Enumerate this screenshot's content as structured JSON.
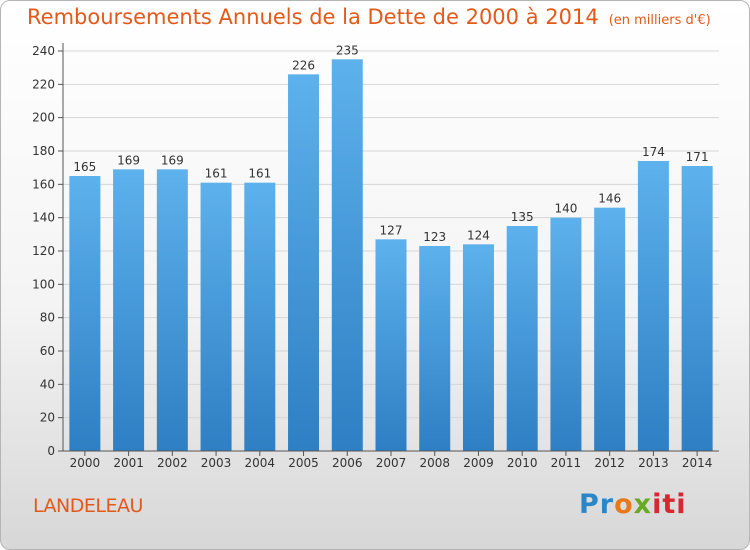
{
  "title": "Remboursements Annuels de la Dette de 2000 à 2014",
  "unit_note": "(en milliers d'€)",
  "location": "LANDELEAU",
  "brand": "Proxiti",
  "chart_data": {
    "type": "bar",
    "title": "Remboursements Annuels de la Dette de 2000 à 2014",
    "xlabel": "",
    "ylabel": "",
    "categories": [
      "2000",
      "2001",
      "2002",
      "2003",
      "2004",
      "2005",
      "2006",
      "2007",
      "2008",
      "2009",
      "2010",
      "2011",
      "2012",
      "2013",
      "2014"
    ],
    "values": [
      165,
      169,
      169,
      161,
      161,
      226,
      235,
      127,
      123,
      124,
      135,
      140,
      146,
      174,
      171
    ],
    "ylim": [
      0,
      240
    ],
    "yticks": [
      0,
      20,
      40,
      60,
      80,
      100,
      120,
      140,
      160,
      180,
      200,
      220,
      240
    ],
    "grid": true,
    "bar_color": "#4a9fe0"
  }
}
